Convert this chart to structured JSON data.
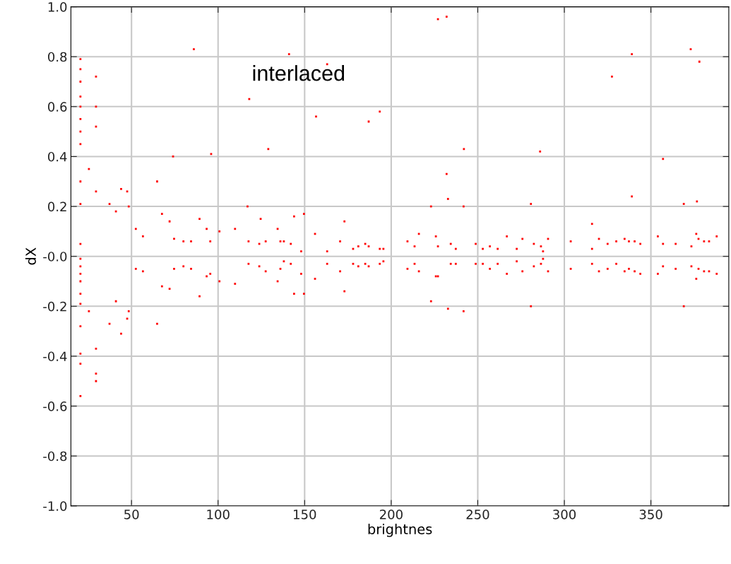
{
  "chart_data": {
    "type": "scatter",
    "xlabel": "brightnes",
    "ylabel": "dX",
    "annotations": [
      "interlaced"
    ],
    "xlim": [
      15,
      395
    ],
    "xticks": [
      50,
      100,
      150,
      200,
      250,
      300,
      350
    ],
    "ylim": [
      -1,
      1
    ],
    "yticks": [
      {
        "value": 1,
        "label": "1.0"
      },
      {
        "value": 0.8,
        "label": "0.8"
      },
      {
        "value": 0.6,
        "label": "0.6"
      },
      {
        "value": 0.4,
        "label": "0.4"
      },
      {
        "value": 0.2,
        "label": "0.2"
      },
      {
        "value": 0,
        "label": "-0.0"
      },
      {
        "value": -0.2,
        "label": "-0.2"
      },
      {
        "value": -0.4,
        "label": "-0.4"
      },
      {
        "value": -0.6,
        "label": "-0.6"
      },
      {
        "value": -0.8,
        "label": "-0.8"
      },
      {
        "value": -1,
        "label": "-1.0"
      }
    ],
    "grid": true,
    "marker": "square",
    "series": [
      {
        "color": "#ff0000",
        "x": [
          20.5,
          20.5,
          20.5,
          20.5,
          20.5,
          20.5,
          20.5,
          20.5,
          20.5,
          20.5,
          20.5,
          20.5,
          20.5,
          20.5,
          20.5,
          20.5,
          20.5,
          20.5,
          20.5,
          20.5,
          20.5,
          29.5,
          29.5,
          29.5,
          29.5,
          29.5,
          29.5,
          29.5,
          25.4,
          25.4,
          86,
          74,
          96,
          118,
          129,
          141,
          117,
          124.6,
          163,
          156.6,
          187,
          193.4,
          227,
          232,
          242,
          232,
          286,
          327.5,
          339,
          339,
          316,
          357,
          373,
          378,
          376.6,
          37.3,
          37.3,
          41,
          41,
          44,
          44,
          47.5,
          47.5,
          48.4,
          48.4,
          52.5,
          52.5,
          56.6,
          56.6,
          64.8,
          64.8,
          67.6,
          67.6,
          72,
          72,
          74.6,
          74.6,
          80,
          80,
          84.4,
          84.4,
          89.3,
          89.3,
          93.4,
          93.4,
          95.5,
          95.5,
          100.8,
          100.8,
          109.8,
          109.8,
          117.6,
          117.6,
          123.8,
          123.8,
          127.5,
          127.5,
          134.4,
          134.4,
          136,
          136,
          138,
          138,
          142,
          142,
          143.9,
          143.9,
          148,
          148,
          149.6,
          149.6,
          156,
          156,
          163,
          163,
          170.5,
          170.5,
          173,
          173,
          178,
          178,
          181,
          181,
          185,
          185,
          187,
          187,
          193.4,
          193.4,
          195.5,
          195.5,
          209.4,
          209.4,
          213.5,
          213.5,
          216,
          216,
          223,
          223,
          225.8,
          225.8,
          227,
          227,
          232.8,
          232.8,
          234.4,
          234.4,
          237.3,
          237.3,
          241.8,
          241.8,
          248.8,
          248.8,
          252.9,
          252.9,
          257,
          257,
          261.5,
          261.5,
          266.8,
          266.8,
          272.5,
          272.5,
          275.8,
          275.8,
          280.7,
          280.7,
          282.4,
          282.4,
          286.5,
          286.5,
          287.7,
          287.7,
          290.6,
          290.6,
          303.7,
          303.7,
          316,
          316,
          320,
          320,
          325,
          325,
          330,
          330,
          334.8,
          334.8,
          337.3,
          337.3,
          340.6,
          340.6,
          343.9,
          343.9,
          354,
          354,
          357,
          357,
          364.3,
          364.3,
          369,
          369,
          373.4,
          373.4,
          376.2,
          376.2,
          377.5,
          377.5,
          380.7,
          380.7,
          383.6,
          383.6,
          388,
          388
        ],
        "values": [
          0.79,
          0.75,
          0.7,
          0.64,
          0.6,
          0.55,
          0.5,
          0.45,
          0.3,
          0.21,
          0.05,
          -0.01,
          -0.04,
          -0.07,
          -0.1,
          -0.15,
          -0.19,
          -0.28,
          -0.39,
          -0.43,
          -0.56,
          0.72,
          0.6,
          0.52,
          0.26,
          -0.37,
          -0.47,
          -0.5,
          0.35,
          -0.22,
          0.83,
          0.4,
          0.41,
          0.63,
          0.43,
          0.81,
          0.2,
          0.15,
          0.77,
          0.56,
          0.54,
          0.58,
          0.95,
          0.96,
          0.43,
          0.33,
          0.42,
          0.72,
          0.81,
          0.24,
          0.13,
          0.39,
          0.83,
          0.78,
          0.22,
          0.21,
          -0.27,
          0.18,
          -0.18,
          0.27,
          -0.31,
          0.26,
          -0.25,
          0.2,
          -0.22,
          0.11,
          -0.05,
          0.08,
          -0.06,
          0.3,
          -0.27,
          0.17,
          -0.12,
          0.14,
          -0.13,
          0.07,
          -0.05,
          0.06,
          -0.04,
          0.06,
          -0.05,
          0.15,
          -0.16,
          0.11,
          -0.08,
          0.06,
          -0.07,
          0.1,
          -0.1,
          0.11,
          -0.11,
          0.06,
          -0.03,
          0.05,
          -0.04,
          0.06,
          -0.06,
          0.11,
          -0.1,
          0.06,
          -0.05,
          0.06,
          -0.02,
          0.05,
          -0.03,
          0.16,
          -0.15,
          0.02,
          -0.07,
          0.17,
          -0.15,
          0.09,
          -0.09,
          0.02,
          -0.03,
          0.06,
          -0.06,
          0.14,
          -0.14,
          0.03,
          -0.03,
          0.04,
          -0.04,
          0.05,
          -0.03,
          0.04,
          -0.04,
          0.03,
          -0.03,
          0.03,
          -0.02,
          0.06,
          -0.05,
          0.04,
          -0.03,
          0.09,
          -0.06,
          0.2,
          -0.18,
          0.08,
          -0.08,
          0.04,
          -0.08,
          0.23,
          -0.21,
          0.05,
          -0.03,
          0.03,
          -0.03,
          0.2,
          -0.22,
          0.05,
          -0.03,
          0.03,
          -0.03,
          0.04,
          -0.05,
          0.03,
          -0.03,
          0.08,
          -0.07,
          0.03,
          -0.02,
          0.07,
          -0.06,
          0.21,
          -0.2,
          0.05,
          -0.04,
          0.04,
          -0.03,
          0.02,
          -0.01,
          0.07,
          -0.06,
          0.06,
          -0.05,
          0.03,
          -0.03,
          0.07,
          -0.06,
          0.05,
          -0.05,
          0.06,
          -0.03,
          0.07,
          -0.06,
          0.06,
          -0.05,
          0.06,
          -0.06,
          0.05,
          -0.07,
          0.08,
          -0.07,
          0.05,
          -0.04,
          0.05,
          -0.05,
          0.21,
          -0.2,
          0.04,
          -0.04,
          0.09,
          -0.09,
          0.07,
          -0.05,
          0.06,
          -0.06,
          0.06,
          -0.06,
          0.08,
          -0.07
        ]
      }
    ]
  }
}
